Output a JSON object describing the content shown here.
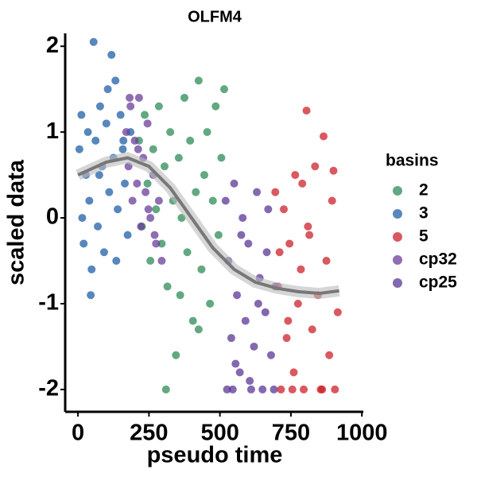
{
  "chart_data": {
    "type": "scatter",
    "title": "OLFM4",
    "x_label": "pseudo time",
    "y_label": "scaled data",
    "legend_title": "basins",
    "legend_position": "right",
    "xlim": [
      -45,
      1005
    ],
    "ylim": [
      -2.26,
      2.15
    ],
    "xticks": [
      0,
      250,
      500,
      750,
      1000
    ],
    "yticks": [
      -2,
      -1,
      0,
      1,
      2
    ],
    "grid": false,
    "series": [
      {
        "name": "2",
        "color": "#2e8b57",
        "x": [
          215,
          225,
          235,
          245,
          255,
          265,
          275,
          285,
          295,
          305,
          315,
          325,
          335,
          345,
          355,
          365,
          375,
          385,
          395,
          405,
          415,
          425,
          435,
          445,
          455,
          465,
          475,
          485,
          495,
          505,
          515,
          310,
          425,
          360
        ],
        "values": [
          0.9,
          -0.1,
          1.2,
          0.4,
          -0.5,
          0.8,
          0.1,
          1.3,
          -0.3,
          0.6,
          -0.8,
          1.0,
          0.2,
          -1.6,
          0.7,
          0.0,
          1.4,
          -0.4,
          0.9,
          -1.2,
          0.3,
          1.6,
          -0.6,
          0.5,
          1.0,
          -1.0,
          0.2,
          1.3,
          -0.2,
          0.7,
          1.5,
          -2.0,
          -1.3,
          -0.9
        ]
      },
      {
        "name": "3",
        "color": "#1f5fa6",
        "x": [
          5,
          12,
          20,
          28,
          35,
          40,
          48,
          55,
          62,
          70,
          78,
          85,
          92,
          100,
          110,
          118,
          125,
          132,
          140,
          150,
          158,
          165,
          175,
          185,
          15,
          45,
          75,
          105,
          135,
          160
        ],
        "values": [
          0.8,
          1.2,
          -0.3,
          0.5,
          1.0,
          0.2,
          -0.6,
          2.05,
          0.9,
          -0.1,
          1.3,
          0.6,
          -0.4,
          1.1,
          0.3,
          1.9,
          0.7,
          1.6,
          0.1,
          1.2,
          0.8,
          0.4,
          -0.2,
          1.0,
          0.0,
          -0.9,
          0.5,
          1.5,
          -0.5,
          0.9
        ]
      },
      {
        "name": "5",
        "color": "#cc2229",
        "x": [
          695,
          705,
          715,
          725,
          735,
          745,
          755,
          765,
          775,
          785,
          795,
          805,
          815,
          825,
          835,
          845,
          855,
          865,
          875,
          885,
          895,
          905,
          915,
          710,
          760,
          810,
          860,
          900,
          740,
          790
        ],
        "values": [
          0.3,
          -0.8,
          -2.0,
          0.1,
          -1.4,
          -0.3,
          -2.0,
          0.5,
          -1.0,
          -0.6,
          -2.0,
          1.25,
          -0.2,
          -1.3,
          0.6,
          -0.9,
          -2.0,
          0.95,
          -0.5,
          -1.6,
          0.2,
          -2.0,
          -1.1,
          -0.4,
          -1.8,
          -0.1,
          -2.0,
          0.55,
          -1.2,
          0.4
        ]
      },
      {
        "name": "cp32",
        "color": "#6a3d9a",
        "x": [
          170,
          178,
          185,
          192,
          200,
          208,
          215,
          222,
          230,
          238,
          245,
          255,
          265,
          275,
          285,
          295,
          182,
          212,
          248,
          270
        ],
        "values": [
          1.0,
          0.6,
          1.3,
          0.2,
          0.9,
          0.4,
          1.4,
          -0.1,
          0.7,
          0.3,
          1.1,
          0.0,
          0.5,
          -0.3,
          0.2,
          -0.5,
          1.4,
          0.8,
          0.1,
          -0.2
        ]
      },
      {
        "name": "cp25",
        "color": "#5b3596",
        "x": [
          520,
          530,
          540,
          550,
          560,
          570,
          580,
          590,
          600,
          610,
          620,
          630,
          640,
          650,
          660,
          670,
          680,
          690,
          545,
          575,
          605,
          635,
          665,
          695,
          525,
          555
        ],
        "values": [
          0.2,
          -0.5,
          -1.4,
          0.4,
          -0.9,
          -1.8,
          0.0,
          -1.2,
          -0.3,
          -2.0,
          -1.5,
          0.3,
          -0.7,
          -2.0,
          -1.1,
          0.1,
          -1.6,
          -2.0,
          -2.0,
          -0.2,
          -1.9,
          -1.0,
          -0.4,
          -0.8,
          -2.0,
          -1.7
        ]
      }
    ],
    "smooth": {
      "color": "#777777",
      "x": [
        0,
        100,
        175,
        250,
        325,
        400,
        475,
        550,
        625,
        700,
        775,
        850,
        920
      ],
      "y": [
        0.5,
        0.65,
        0.7,
        0.6,
        0.35,
        0.0,
        -0.35,
        -0.6,
        -0.75,
        -0.82,
        -0.86,
        -0.88,
        -0.85
      ]
    }
  }
}
